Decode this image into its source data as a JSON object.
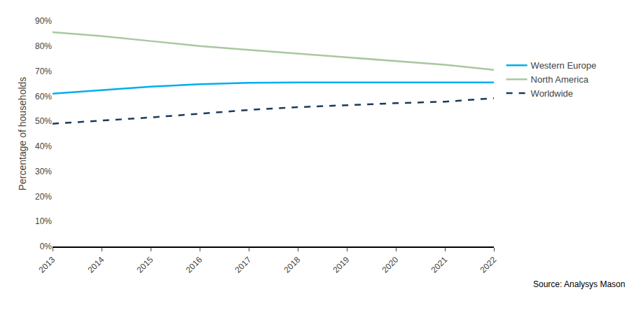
{
  "chart_data": {
    "type": "line",
    "x": [
      2013,
      2014,
      2015,
      2016,
      2017,
      2018,
      2019,
      2020,
      2021,
      2022
    ],
    "series": [
      {
        "name": "Western Europe",
        "color": "#00AEEF",
        "line_style": "solid",
        "values": [
          0.61,
          0.625,
          0.638,
          0.648,
          0.653,
          0.655,
          0.655,
          0.655,
          0.655,
          0.655
        ]
      },
      {
        "name": "North America",
        "color": "#A8C8A0",
        "line_style": "solid",
        "values": [
          0.855,
          0.84,
          0.82,
          0.8,
          0.785,
          0.77,
          0.755,
          0.74,
          0.725,
          0.705
        ]
      },
      {
        "name": "Worldwide",
        "color": "#1B3A5C",
        "line_style": "dashed",
        "values": [
          0.49,
          0.502,
          0.515,
          0.53,
          0.545,
          0.556,
          0.565,
          0.572,
          0.578,
          0.592
        ]
      }
    ],
    "ylabel": "Percentage of households",
    "annotations": [
      "Source: Analysys Mason"
    ],
    "xlim": [
      2013,
      2022
    ],
    "xticks": [
      2013,
      2014,
      2015,
      2016,
      2017,
      2018,
      2019,
      2020,
      2021,
      2022
    ],
    "ylim": [
      0,
      0.9
    ],
    "yticks": [
      {
        "value": 0,
        "label": "0%"
      },
      {
        "value": 0.1,
        "label": "10%"
      },
      {
        "value": 0.2,
        "label": "20%"
      },
      {
        "value": 0.3,
        "label": "30%"
      },
      {
        "value": 0.4,
        "label": "40%"
      },
      {
        "value": 0.5,
        "label": "50%"
      },
      {
        "value": 0.6,
        "label": "60%"
      },
      {
        "value": 0.7,
        "label": "70%"
      },
      {
        "value": 0.8,
        "label": "80%"
      },
      {
        "value": 0.9,
        "label": "90%"
      }
    ],
    "grid": false,
    "legend": "right"
  }
}
